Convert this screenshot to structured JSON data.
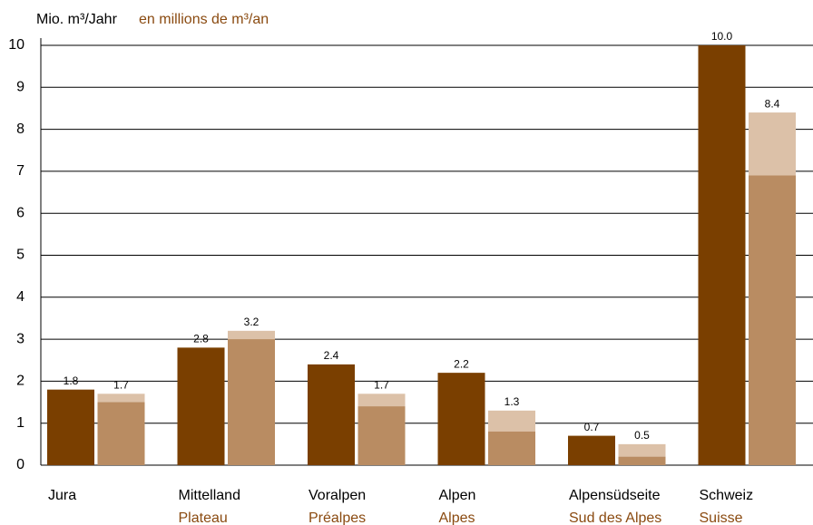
{
  "chart_data": {
    "type": "bar",
    "title": "Mio. m³/Jahr",
    "subtitle": "en millions de m³/an",
    "categories": [
      "Jura",
      "Mittelland",
      "Voralpen",
      "Alpen",
      "Alpensüdseite",
      "Schweiz"
    ],
    "categories_fr": [
      null,
      "Plateau",
      "Préalpes",
      "Alpes",
      "Sud des Alpes",
      "Suisse"
    ],
    "series": [
      {
        "color": "#7a3f00",
        "values": [
          1.8,
          2.8,
          2.4,
          2.2,
          0.7,
          10.0
        ],
        "value_labels": [
          "1.8",
          "2.8",
          "2.4",
          "2.2",
          "0.7",
          "10.0"
        ]
      },
      {
        "color": "#dcc1a8",
        "values": [
          1.7,
          3.2,
          1.7,
          1.3,
          0.5,
          8.4
        ],
        "value_labels": [
          "1.7",
          "3.2",
          "1.7",
          "1.3",
          "0.5",
          "8.4"
        ]
      },
      {
        "color": "#b98c62",
        "values": [
          1.5,
          3.0,
          1.4,
          0.8,
          0.2,
          6.9
        ]
      }
    ],
    "ylim": [
      0,
      10
    ],
    "yticks": [
      0,
      1,
      2,
      3,
      4,
      5,
      6,
      7,
      8,
      9,
      10
    ],
    "grid": true
  }
}
